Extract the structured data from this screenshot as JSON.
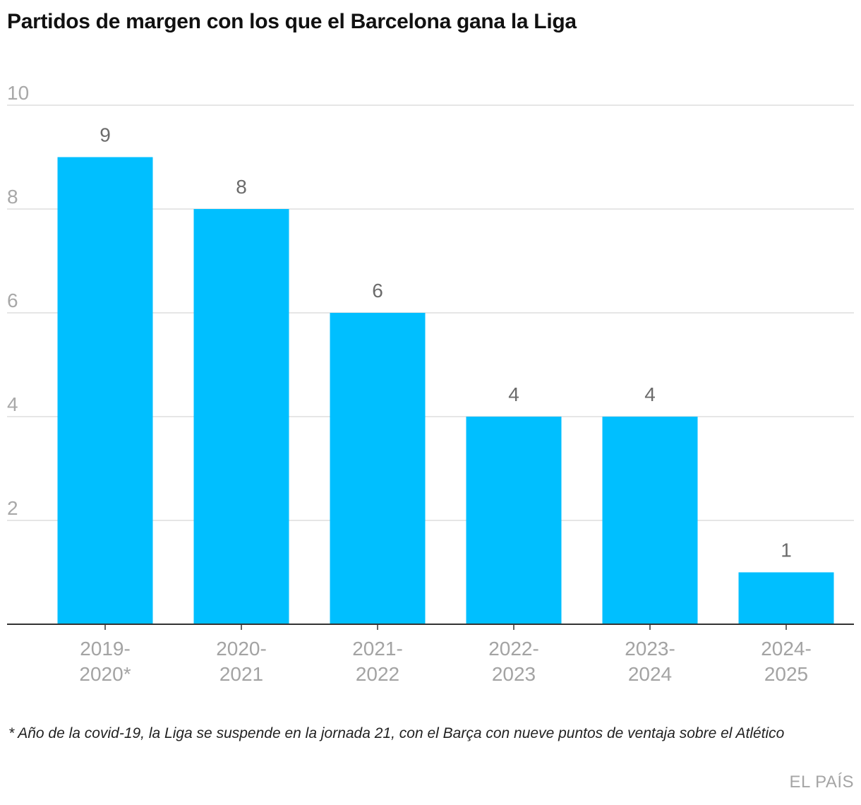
{
  "chart_data": {
    "type": "bar",
    "title": "Partidos de margen con los que el Barcelona gana la Liga",
    "categories": [
      [
        "2019-",
        "2020*"
      ],
      [
        "2020-",
        "2021"
      ],
      [
        "2021-",
        "2022"
      ],
      [
        "2022-",
        "2023"
      ],
      [
        "2023-",
        "2024"
      ],
      [
        "2024-",
        "2025"
      ]
    ],
    "values": [
      9,
      8,
      6,
      4,
      4,
      1
    ],
    "value_labels": [
      "9",
      "8",
      "6",
      "4",
      "4",
      "1"
    ],
    "y_ticks": [
      2,
      4,
      6,
      8,
      10
    ],
    "y_tick_labels": [
      "2",
      "4",
      "6",
      "8",
      "10"
    ],
    "ylim": [
      0,
      10
    ],
    "grid": true,
    "bar_color": "#00bfff",
    "xlabel": "",
    "ylabel": ""
  },
  "footnote": "* Año de la covid-19, la Liga se suspende en la jornada 21, con el Barça con nueve puntos de ventaja sobre el Atlético",
  "source": "EL PAÍS"
}
